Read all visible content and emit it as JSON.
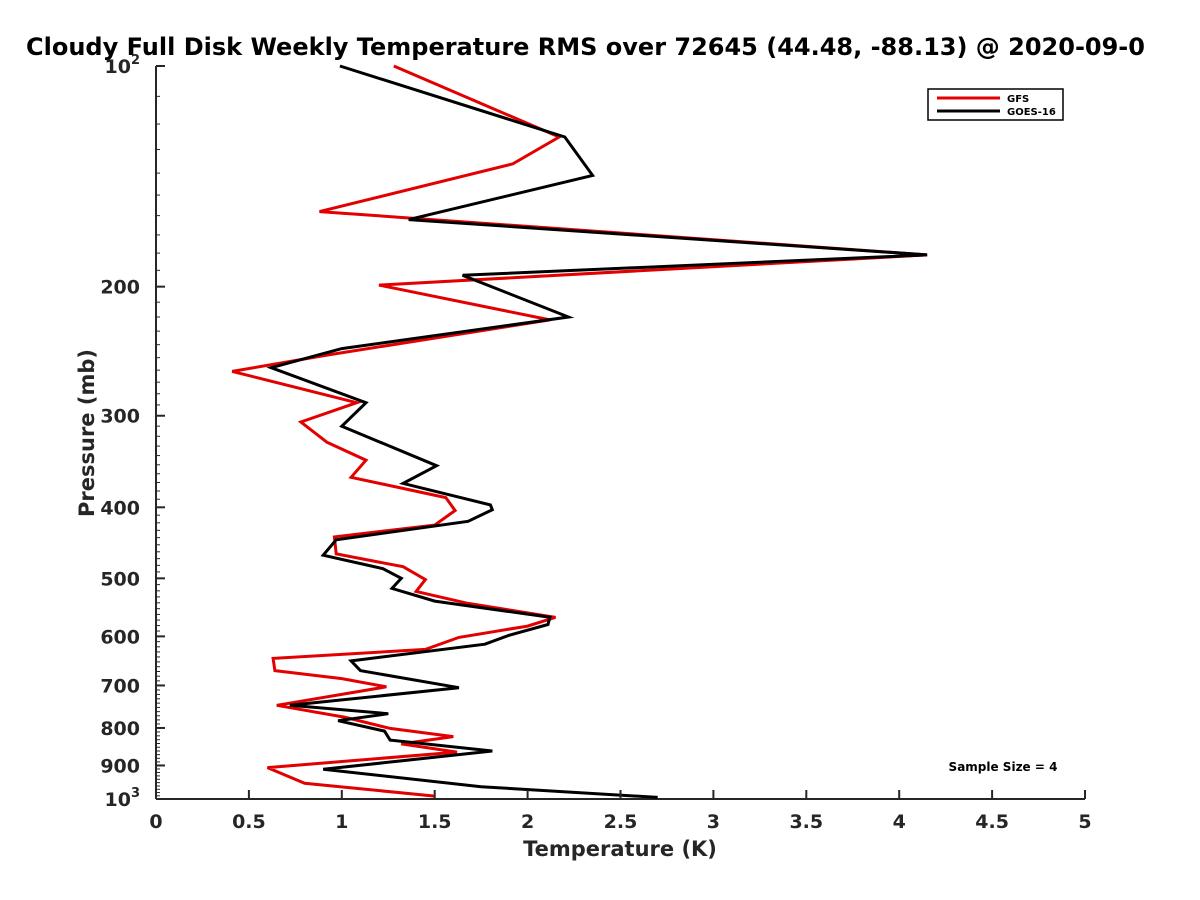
{
  "chart_data": {
    "type": "line",
    "title": "Cloudy Full Disk Weekly Temperature RMS over 72645 (44.48, -88.13) @ 2020-09-0",
    "xlabel": "Temperature (K)",
    "ylabel": "Pressure (mb)",
    "xlim": [
      0,
      5
    ],
    "ylim": [
      100,
      1000
    ],
    "y_scale": "log",
    "y_reversed": true,
    "x_ticks": [
      "0",
      "0.5",
      "1",
      "1.5",
      "2",
      "2.5",
      "3",
      "3.5",
      "4",
      "4.5",
      "5"
    ],
    "y_ticks": [
      {
        "value": 100,
        "base": "10",
        "exp": "2"
      },
      {
        "value": 200,
        "label": "200"
      },
      {
        "value": 300,
        "label": "300"
      },
      {
        "value": 400,
        "label": "400"
      },
      {
        "value": 500,
        "label": "500"
      },
      {
        "value": 600,
        "label": "600"
      },
      {
        "value": 700,
        "label": "700"
      },
      {
        "value": 800,
        "label": "800"
      },
      {
        "value": 900,
        "label": "900"
      },
      {
        "value": 1000,
        "base": "10",
        "exp": "3"
      }
    ],
    "grid": false,
    "legend_position": "top-right",
    "annotation": "Sample Size = 4",
    "series": [
      {
        "name": "GFS",
        "color": "#e30000",
        "points": [
          [
            1.28,
            100
          ],
          [
            2.17,
            125
          ],
          [
            1.92,
            136
          ],
          [
            0.88,
            158
          ],
          [
            4.15,
            181
          ],
          [
            1.2,
            199
          ],
          [
            2.12,
            222
          ],
          [
            0.92,
            248
          ],
          [
            0.41,
            261
          ],
          [
            1.08,
            288
          ],
          [
            0.78,
            306
          ],
          [
            0.92,
            326
          ],
          [
            1.13,
            345
          ],
          [
            1.05,
            364
          ],
          [
            1.56,
            388
          ],
          [
            1.61,
            404
          ],
          [
            1.5,
            423
          ],
          [
            0.96,
            439
          ],
          [
            0.97,
            463
          ],
          [
            1.33,
            482
          ],
          [
            1.45,
            502
          ],
          [
            1.4,
            521
          ],
          [
            1.68,
            541
          ],
          [
            2.15,
            565
          ],
          [
            2.0,
            581
          ],
          [
            1.63,
            602
          ],
          [
            1.45,
            625
          ],
          [
            0.63,
            643
          ],
          [
            0.64,
            668
          ],
          [
            1.0,
            685
          ],
          [
            1.24,
            703
          ],
          [
            0.65,
            745
          ],
          [
            1.02,
            774
          ],
          [
            1.26,
            801
          ],
          [
            1.6,
            822
          ],
          [
            1.32,
            841
          ],
          [
            1.62,
            863
          ],
          [
            0.6,
            906
          ],
          [
            0.8,
            952
          ],
          [
            1.5,
            991
          ]
        ]
      },
      {
        "name": "GOES-16",
        "color": "#000000",
        "points": [
          [
            0.99,
            100
          ],
          [
            2.2,
            125
          ],
          [
            2.35,
            141
          ],
          [
            1.36,
            162
          ],
          [
            4.15,
            181
          ],
          [
            1.65,
            193
          ],
          [
            2.22,
            220
          ],
          [
            1.0,
            243
          ],
          [
            0.62,
            258
          ],
          [
            1.13,
            288
          ],
          [
            1.0,
            310
          ],
          [
            1.51,
            351
          ],
          [
            1.33,
            371
          ],
          [
            1.8,
            397
          ],
          [
            1.81,
            403
          ],
          [
            1.68,
            418
          ],
          [
            0.97,
            443
          ],
          [
            0.9,
            465
          ],
          [
            1.22,
            485
          ],
          [
            1.32,
            500
          ],
          [
            1.27,
            516
          ],
          [
            1.5,
            537
          ],
          [
            2.12,
            565
          ],
          [
            2.11,
            578
          ],
          [
            1.9,
            598
          ],
          [
            1.77,
            615
          ],
          [
            1.05,
            648
          ],
          [
            1.1,
            668
          ],
          [
            1.63,
            705
          ],
          [
            0.72,
            745
          ],
          [
            1.25,
            765
          ],
          [
            0.98,
            782
          ],
          [
            1.23,
            808
          ],
          [
            1.26,
            831
          ],
          [
            1.81,
            860
          ],
          [
            0.9,
            911
          ],
          [
            1.75,
            962
          ],
          [
            2.7,
            995
          ]
        ]
      }
    ]
  }
}
